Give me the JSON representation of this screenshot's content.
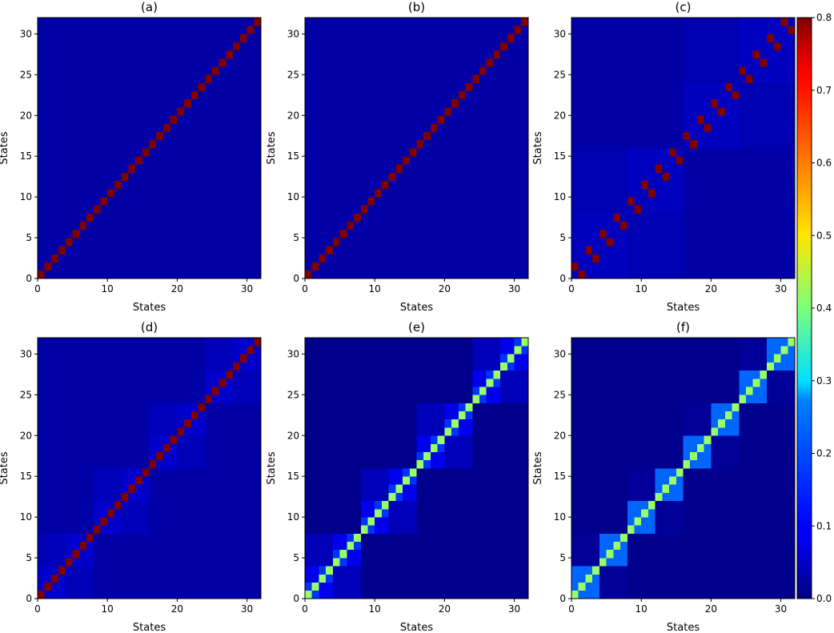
{
  "chart_data": {
    "type": "heatmap",
    "grid_size": 32,
    "colormap": "jet",
    "colorbar": {
      "min": 0.0,
      "max": 0.8,
      "ticks": [
        "0.0",
        "0.1",
        "0.2",
        "0.3",
        "0.4",
        "0.5",
        "0.6",
        "0.7",
        "0.8"
      ],
      "placement": "right"
    },
    "x_ticks": [
      "0",
      "10",
      "20",
      "30"
    ],
    "y_ticks": [
      "0",
      "5",
      "10",
      "15",
      "20",
      "25",
      "30"
    ],
    "xlim": [
      0,
      32
    ],
    "ylim": [
      0,
      32
    ],
    "panels": [
      {
        "title": "(a)",
        "xlabel": "States",
        "ylabel": "States",
        "pattern": "diagonal",
        "diagonal_value": 0.8,
        "off_diagonal_value": 0.03
      },
      {
        "title": "(b)",
        "xlabel": "States",
        "ylabel": "States",
        "pattern": "diagonal",
        "diagonal_value": 0.8,
        "off_diagonal_value": 0.03
      },
      {
        "title": "(c)",
        "xlabel": "States",
        "ylabel": "States",
        "pattern": "pair_swap",
        "pair_value": 0.8,
        "block8_value": 0.05,
        "block16_value": 0.04,
        "background_value": 0.03
      },
      {
        "title": "(d)",
        "xlabel": "States",
        "ylabel": "States",
        "pattern": "diagonal_blocks",
        "diagonal_value": 0.8,
        "block4_value": 0.06,
        "block8_value": 0.045,
        "background_value": 0.03
      },
      {
        "title": "(e)",
        "xlabel": "States",
        "ylabel": "States",
        "pattern": "nested_blocks",
        "diagonal_value": 0.42,
        "block2_value": 0.14,
        "block4_value": 0.085,
        "block8_value": 0.045,
        "background_value": 0.01
      },
      {
        "title": "(f)",
        "xlabel": "States",
        "ylabel": "States",
        "pattern": "uniform_blocks",
        "diagonal_value": 0.42,
        "block4_value": 0.18,
        "block8_value": 0.02,
        "background_value": 0.01
      }
    ]
  }
}
